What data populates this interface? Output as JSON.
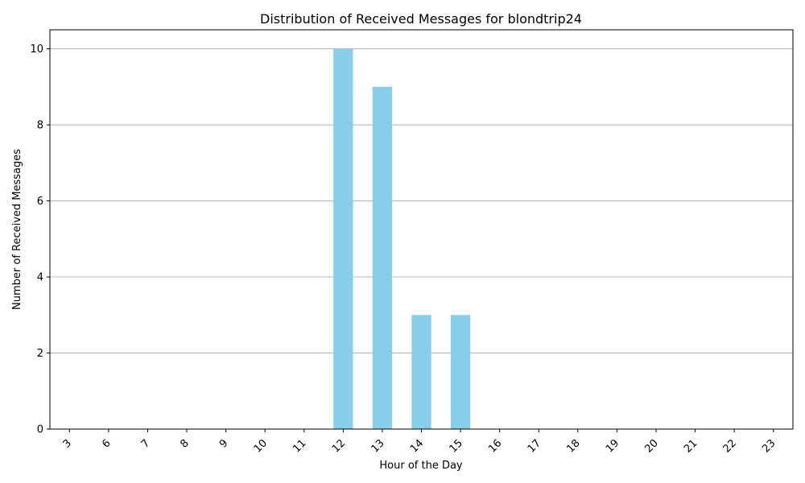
{
  "chart_data": {
    "type": "bar",
    "title": "Distribution of Received Messages for blondtrip24",
    "xlabel": "Hour of the Day",
    "ylabel": "Number of Received Messages",
    "categories": [
      "3",
      "6",
      "7",
      "8",
      "9",
      "10",
      "11",
      "12",
      "13",
      "14",
      "15",
      "16",
      "17",
      "18",
      "19",
      "20",
      "21",
      "22",
      "23"
    ],
    "values": [
      0,
      0,
      0,
      0,
      0,
      0,
      0,
      10,
      9,
      3,
      3,
      0,
      0,
      0,
      0,
      0,
      0,
      0,
      0
    ],
    "ylim": [
      0,
      10.5
    ],
    "yticks": [
      0,
      2,
      4,
      6,
      8,
      10
    ],
    "grid": "y-only",
    "x_tick_rotation": 45,
    "bar_color": "#87ceeb"
  }
}
